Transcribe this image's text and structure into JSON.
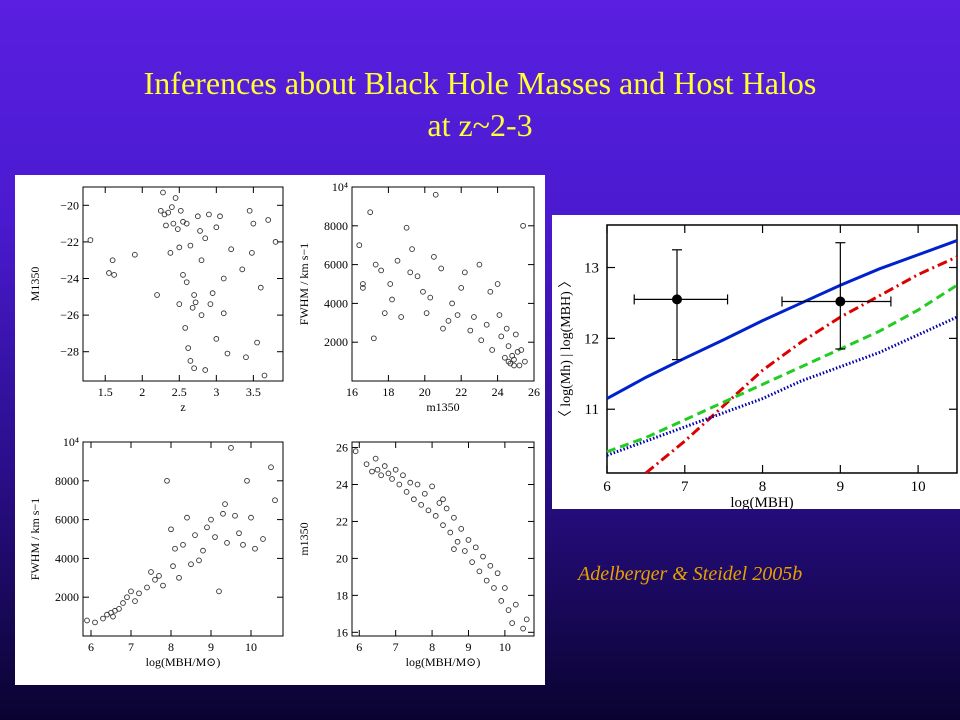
{
  "title": {
    "line1": "Inferences about Black Hole Masses and Host Halos",
    "line2": "at z~2-3"
  },
  "citation": "Adelberger & Steidel 2005b",
  "colors": {
    "title": "#ffff33",
    "citation": "#e8a000",
    "blue_curve": "#0022cc",
    "red_curve": "#dd0000",
    "green_curve": "#22cc22",
    "navy_curve": "#0000aa"
  },
  "chart_data": [
    {
      "type": "scatter",
      "panel": "top-left",
      "xlabel": "z",
      "ylabel": "M1350",
      "xlim": [
        1.2,
        3.9
      ],
      "ylim": [
        -29.6,
        -19.0
      ],
      "yinverted": true,
      "xticks": [
        "1.5",
        "2",
        "2.5",
        "3",
        "3.5"
      ],
      "xtick_values": [
        1.5,
        2,
        2.5,
        3,
        3.5
      ],
      "yticks": [
        "−20",
        "−22",
        "−24",
        "−26",
        "−28"
      ],
      "ytick_values": [
        -20,
        -22,
        -24,
        -26,
        -28
      ],
      "points": [
        [
          1.3,
          -21.9
        ],
        [
          1.55,
          -23.7
        ],
        [
          1.6,
          -23.0
        ],
        [
          1.62,
          -23.8
        ],
        [
          1.9,
          -22.7
        ],
        [
          2.2,
          -24.9
        ],
        [
          2.25,
          -20.3
        ],
        [
          2.28,
          -19.3
        ],
        [
          2.3,
          -20.5
        ],
        [
          2.32,
          -21.1
        ],
        [
          2.35,
          -20.4
        ],
        [
          2.38,
          -22.6
        ],
        [
          2.4,
          -20.1
        ],
        [
          2.42,
          -21.0
        ],
        [
          2.45,
          -19.6
        ],
        [
          2.48,
          -21.3
        ],
        [
          2.5,
          -22.3
        ],
        [
          2.5,
          -25.4
        ],
        [
          2.52,
          -20.3
        ],
        [
          2.55,
          -20.9
        ],
        [
          2.55,
          -23.8
        ],
        [
          2.58,
          -26.7
        ],
        [
          2.6,
          -21.0
        ],
        [
          2.6,
          -24.2
        ],
        [
          2.62,
          -27.8
        ],
        [
          2.65,
          -28.5
        ],
        [
          2.65,
          -22.2
        ],
        [
          2.68,
          -25.6
        ],
        [
          2.7,
          -28.9
        ],
        [
          2.7,
          -24.9
        ],
        [
          2.72,
          -25.3
        ],
        [
          2.75,
          -20.6
        ],
        [
          2.78,
          -21.4
        ],
        [
          2.8,
          -26.0
        ],
        [
          2.8,
          -23.0
        ],
        [
          2.85,
          -29.0
        ],
        [
          2.85,
          -21.8
        ],
        [
          2.9,
          -20.5
        ],
        [
          2.92,
          -25.4
        ],
        [
          2.95,
          -24.8
        ],
        [
          3.0,
          -21.2
        ],
        [
          3.0,
          -27.3
        ],
        [
          3.05,
          -20.6
        ],
        [
          3.1,
          -24.0
        ],
        [
          3.1,
          -25.9
        ],
        [
          3.15,
          -28.1
        ],
        [
          3.2,
          -22.4
        ],
        [
          3.35,
          -23.5
        ],
        [
          3.4,
          -28.3
        ],
        [
          3.45,
          -20.3
        ],
        [
          3.48,
          -22.6
        ],
        [
          3.5,
          -21.0
        ],
        [
          3.55,
          -27.5
        ],
        [
          3.6,
          -24.5
        ],
        [
          3.65,
          -29.3
        ],
        [
          3.7,
          -20.8
        ],
        [
          3.8,
          -22.0
        ]
      ]
    },
    {
      "type": "scatter",
      "panel": "top-right",
      "xlabel": "m1350",
      "ylabel": "FWHM / km s−1",
      "xlim": [
        16,
        26
      ],
      "ylim": [
        0,
        10000
      ],
      "xticks": [
        "16",
        "18",
        "20",
        "22",
        "24",
        "26"
      ],
      "xtick_values": [
        16,
        18,
        20,
        22,
        24,
        26
      ],
      "yticks": [
        "2000",
        "4000",
        "6000",
        "8000",
        "10⁴"
      ],
      "ytick_values": [
        2000,
        4000,
        6000,
        8000,
        10000
      ],
      "points": [
        [
          16.4,
          7000
        ],
        [
          16.6,
          4800
        ],
        [
          16.6,
          5000
        ],
        [
          17.0,
          8700
        ],
        [
          17.2,
          2200
        ],
        [
          17.3,
          6000
        ],
        [
          17.6,
          5700
        ],
        [
          17.8,
          3500
        ],
        [
          18.1,
          5000
        ],
        [
          18.2,
          4200
        ],
        [
          18.5,
          6200
        ],
        [
          18.7,
          3300
        ],
        [
          19.0,
          7900
        ],
        [
          19.2,
          5600
        ],
        [
          19.3,
          6800
        ],
        [
          19.6,
          5400
        ],
        [
          19.9,
          4600
        ],
        [
          20.1,
          3500
        ],
        [
          20.3,
          4300
        ],
        [
          20.5,
          6400
        ],
        [
          20.6,
          9600
        ],
        [
          20.9,
          5800
        ],
        [
          21.0,
          2700
        ],
        [
          21.3,
          3100
        ],
        [
          21.5,
          4000
        ],
        [
          21.8,
          3400
        ],
        [
          22.0,
          4800
        ],
        [
          22.2,
          5600
        ],
        [
          22.5,
          2600
        ],
        [
          22.7,
          3300
        ],
        [
          23.0,
          6000
        ],
        [
          23.1,
          2100
        ],
        [
          23.4,
          2900
        ],
        [
          23.6,
          4600
        ],
        [
          23.7,
          1600
        ],
        [
          24.0,
          5000
        ],
        [
          24.1,
          3400
        ],
        [
          24.2,
          2300
        ],
        [
          24.4,
          1200
        ],
        [
          24.5,
          2700
        ],
        [
          24.6,
          1800
        ],
        [
          24.7,
          900
        ],
        [
          24.8,
          1300
        ],
        [
          24.9,
          1100
        ],
        [
          25.0,
          2400
        ],
        [
          25.1,
          1500
        ],
        [
          25.2,
          800
        ],
        [
          25.3,
          1600
        ],
        [
          25.4,
          8000
        ],
        [
          25.5,
          1000
        ],
        [
          24.6,
          1000
        ],
        [
          24.9,
          800
        ]
      ]
    },
    {
      "type": "scatter",
      "panel": "bottom-left",
      "xlabel": "log(MBH/M⊙)",
      "ylabel": "FWHM / km s−1",
      "xlim": [
        5.8,
        10.8
      ],
      "ylim": [
        0,
        10000
      ],
      "xticks": [
        "6",
        "7",
        "8",
        "9",
        "10"
      ],
      "xtick_values": [
        6,
        7,
        8,
        9,
        10
      ],
      "yticks": [
        "2000",
        "4000",
        "6000",
        "8000",
        "10⁴"
      ],
      "ytick_values": [
        2000,
        4000,
        6000,
        8000,
        10000
      ],
      "points": [
        [
          5.9,
          800
        ],
        [
          6.1,
          700
        ],
        [
          6.3,
          900
        ],
        [
          6.4,
          1100
        ],
        [
          6.5,
          1200
        ],
        [
          6.55,
          1000
        ],
        [
          6.6,
          1300
        ],
        [
          6.7,
          1400
        ],
        [
          6.8,
          1700
        ],
        [
          6.9,
          2000
        ],
        [
          7.0,
          2300
        ],
        [
          7.1,
          1800
        ],
        [
          7.2,
          2200
        ],
        [
          7.4,
          2500
        ],
        [
          7.5,
          3300
        ],
        [
          7.6,
          2900
        ],
        [
          7.7,
          3100
        ],
        [
          7.8,
          2600
        ],
        [
          7.9,
          8000
        ],
        [
          8.0,
          5500
        ],
        [
          8.05,
          3600
        ],
        [
          8.1,
          4500
        ],
        [
          8.2,
          3000
        ],
        [
          8.3,
          4700
        ],
        [
          8.4,
          6100
        ],
        [
          8.5,
          3700
        ],
        [
          8.6,
          5200
        ],
        [
          8.7,
          3900
        ],
        [
          8.8,
          4400
        ],
        [
          8.9,
          5600
        ],
        [
          9.0,
          6000
        ],
        [
          9.1,
          5100
        ],
        [
          9.2,
          2300
        ],
        [
          9.3,
          6300
        ],
        [
          9.35,
          6800
        ],
        [
          9.4,
          4800
        ],
        [
          9.5,
          9700
        ],
        [
          9.6,
          6200
        ],
        [
          9.7,
          5300
        ],
        [
          9.8,
          4700
        ],
        [
          9.9,
          8000
        ],
        [
          10.0,
          6100
        ],
        [
          10.1,
          4500
        ],
        [
          10.3,
          5000
        ],
        [
          10.5,
          8700
        ],
        [
          10.6,
          7000
        ]
      ]
    },
    {
      "type": "scatter",
      "panel": "bottom-right",
      "xlabel": "log(MBH/M⊙)",
      "ylabel": "m1350",
      "xlim": [
        5.8,
        10.8
      ],
      "ylim": [
        15.8,
        26.3
      ],
      "xticks": [
        "6",
        "7",
        "8",
        "9",
        "10"
      ],
      "xtick_values": [
        6,
        7,
        8,
        9,
        10
      ],
      "yticks": [
        "16",
        "18",
        "20",
        "22",
        "24",
        "26"
      ],
      "ytick_values": [
        16,
        18,
        20,
        22,
        24,
        26
      ],
      "points": [
        [
          5.9,
          25.8
        ],
        [
          6.2,
          25.1
        ],
        [
          6.35,
          24.7
        ],
        [
          6.45,
          25.4
        ],
        [
          6.5,
          24.8
        ],
        [
          6.6,
          24.5
        ],
        [
          6.7,
          25.0
        ],
        [
          6.8,
          24.6
        ],
        [
          6.9,
          24.3
        ],
        [
          7.0,
          24.8
        ],
        [
          7.1,
          24.0
        ],
        [
          7.2,
          24.5
        ],
        [
          7.3,
          23.6
        ],
        [
          7.4,
          24.1
        ],
        [
          7.5,
          23.2
        ],
        [
          7.6,
          24.0
        ],
        [
          7.7,
          22.9
        ],
        [
          7.8,
          23.5
        ],
        [
          7.9,
          22.6
        ],
        [
          8.0,
          23.9
        ],
        [
          8.1,
          22.3
        ],
        [
          8.2,
          23.0
        ],
        [
          8.3,
          21.8
        ],
        [
          8.4,
          22.7
        ],
        [
          8.5,
          21.4
        ],
        [
          8.6,
          22.2
        ],
        [
          8.7,
          20.9
        ],
        [
          8.8,
          21.6
        ],
        [
          8.9,
          20.4
        ],
        [
          9.0,
          21.0
        ],
        [
          9.1,
          19.8
        ],
        [
          9.2,
          20.6
        ],
        [
          9.3,
          19.3
        ],
        [
          9.4,
          20.1
        ],
        [
          9.5,
          18.8
        ],
        [
          9.6,
          19.6
        ],
        [
          9.7,
          18.4
        ],
        [
          9.8,
          19.2
        ],
        [
          9.9,
          17.7
        ],
        [
          10.0,
          18.4
        ],
        [
          10.1,
          17.2
        ],
        [
          10.2,
          16.5
        ],
        [
          10.3,
          17.5
        ],
        [
          10.5,
          16.2
        ],
        [
          10.6,
          16.7
        ],
        [
          8.3,
          23.2
        ],
        [
          8.6,
          20.5
        ]
      ]
    },
    {
      "type": "line",
      "panel": "right",
      "xlabel": "log(MBH)",
      "ylabel": "〈 log(Mh) | log(MBH) 〉",
      "xlim": [
        6,
        10.5
      ],
      "ylim": [
        10.1,
        13.6
      ],
      "xticks": [
        "6",
        "7",
        "8",
        "9",
        "10"
      ],
      "xtick_values": [
        6,
        7,
        8,
        9,
        10
      ],
      "yticks": [
        "11",
        "12",
        "13"
      ],
      "ytick_values": [
        11,
        12,
        13
      ],
      "series": [
        {
          "style": "solid",
          "color": "#0022cc",
          "x": [
            6,
            6.5,
            7,
            7.5,
            8,
            8.5,
            9,
            9.5,
            10,
            10.5
          ],
          "y": [
            11.15,
            11.45,
            11.72,
            11.98,
            12.25,
            12.5,
            12.75,
            12.98,
            13.18,
            13.38
          ]
        },
        {
          "style": "dashdot",
          "color": "#dd0000",
          "x": [
            6.5,
            7,
            7.5,
            8,
            8.5,
            9,
            9.5,
            10,
            10.5
          ],
          "y": [
            10.1,
            10.55,
            11.05,
            11.55,
            11.95,
            12.3,
            12.6,
            12.9,
            13.15
          ]
        },
        {
          "style": "dashed",
          "color": "#22cc22",
          "x": [
            6,
            6.5,
            7,
            7.5,
            8,
            8.5,
            9,
            9.5,
            10,
            10.5
          ],
          "y": [
            10.4,
            10.6,
            10.85,
            11.1,
            11.35,
            11.6,
            11.85,
            12.1,
            12.4,
            12.75
          ]
        },
        {
          "style": "dotted",
          "color": "#0000aa",
          "x": [
            6,
            6.5,
            7,
            7.5,
            8,
            8.5,
            9,
            9.5,
            10,
            10.5
          ],
          "y": [
            10.35,
            10.55,
            10.75,
            10.95,
            11.15,
            11.4,
            11.6,
            11.8,
            12.05,
            12.3
          ]
        }
      ],
      "errorbar_points": [
        {
          "x": 6.9,
          "y": 12.55,
          "xerr": [
            6.35,
            7.55
          ],
          "yerr": [
            11.7,
            13.25
          ]
        },
        {
          "x": 9.0,
          "y": 12.52,
          "xerr": [
            8.25,
            9.65
          ],
          "yerr": [
            11.85,
            13.35
          ]
        }
      ]
    }
  ]
}
